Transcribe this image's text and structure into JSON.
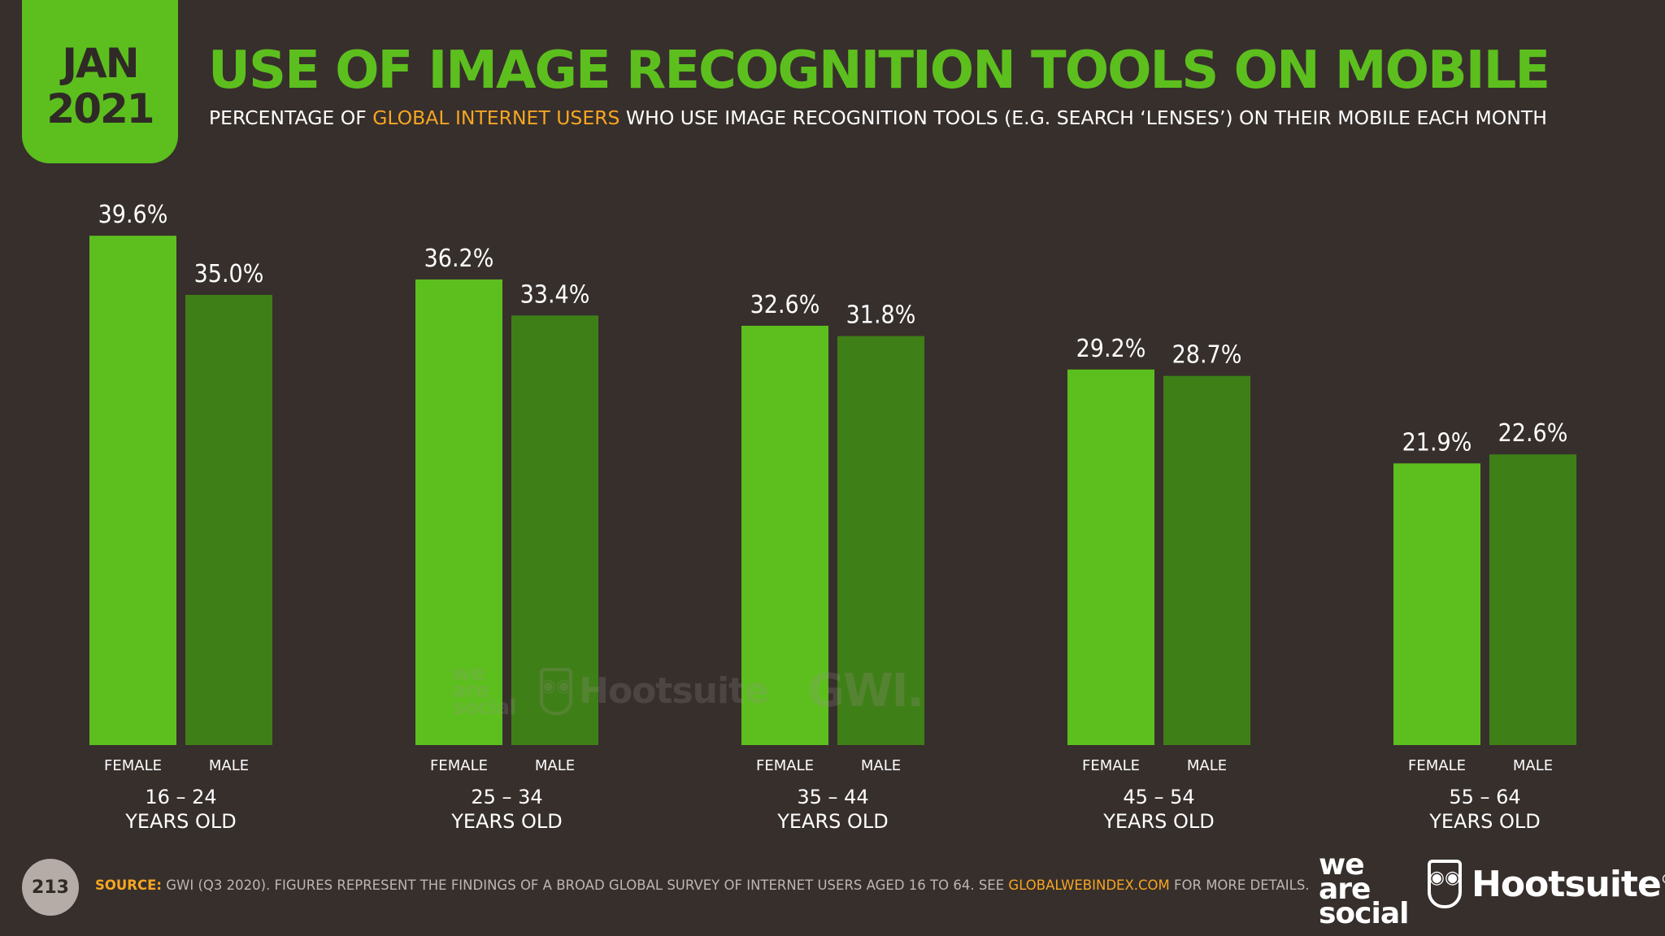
{
  "badge": {
    "month": "JAN",
    "year": "2021"
  },
  "header": {
    "title": "USE OF IMAGE RECOGNITION TOOLS ON MOBILE",
    "subtitle_pre": "PERCENTAGE OF ",
    "subtitle_highlight": "GLOBAL INTERNET USERS",
    "subtitle_post": " WHO USE IMAGE RECOGNITION TOOLS (E.G. SEARCH ‘LENSES’) ON THEIR MOBILE EACH MONTH"
  },
  "colors": {
    "accent": "#5cbf1e",
    "female": "#5cbf1e",
    "male": "#3f7f18",
    "background": "#372f2c",
    "highlight": "#f5a623"
  },
  "chart_data": {
    "type": "bar",
    "title": "USE OF IMAGE RECOGNITION TOOLS ON MOBILE",
    "categories": [
      "16 – 24",
      "25 – 34",
      "35 – 44",
      "45 – 54",
      "55 – 64"
    ],
    "category_suffix": "YEARS OLD",
    "series": [
      {
        "name": "FEMALE",
        "values": [
          39.6,
          36.2,
          32.6,
          29.2,
          21.9
        ],
        "labels": [
          "39.6%",
          "36.2%",
          "32.6%",
          "29.2%",
          "21.9%"
        ]
      },
      {
        "name": "MALE",
        "values": [
          35.0,
          33.4,
          31.8,
          28.7,
          22.6
        ],
        "labels": [
          "35.0%",
          "33.4%",
          "31.8%",
          "28.7%",
          "22.6%"
        ]
      }
    ],
    "ylim": [
      0,
      40
    ],
    "grid": false,
    "legend": "below-each-bar"
  },
  "watermark": {
    "brand1_line1": "we",
    "brand1_line2": "are",
    "brand1_line3": "social",
    "brand2": "Hootsuite",
    "brand3": "GWI."
  },
  "footer": {
    "page_number": "213",
    "source_label": "SOURCE:",
    "source_text": " GWI (Q3 2020). FIGURES REPRESENT THE FINDINGS OF A BROAD GLOBAL SURVEY OF INTERNET USERS AGED 16 TO 64. SEE ",
    "source_link": "GLOBALWEBINDEX.COM",
    "source_tail": " FOR MORE DETAILS.",
    "logo1_line1": "we",
    "logo1_line2": "are",
    "logo1_line3": "social",
    "logo2": "Hootsuite",
    "logo2_mark": "®"
  }
}
